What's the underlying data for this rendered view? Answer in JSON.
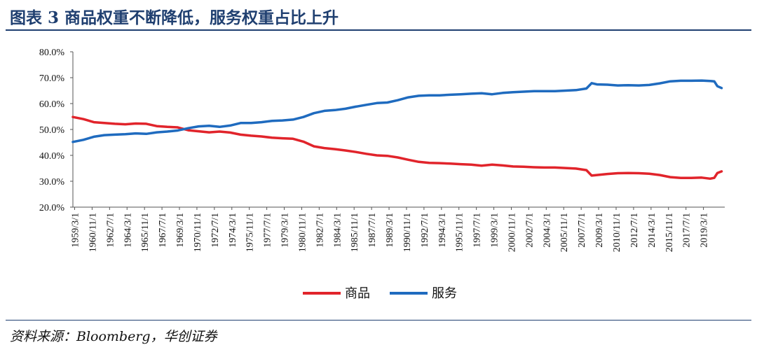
{
  "header": {
    "title": "图表 3    商品权重不断降低，服务权重占比上升"
  },
  "footer": {
    "source": "资料来源：Bloomberg，华创证券"
  },
  "colors": {
    "goods": "#e1242b",
    "services": "#1f6bbf",
    "accent": "#1f3f70"
  },
  "chart_data": {
    "type": "line",
    "title": "",
    "xlabel": "",
    "ylabel": "",
    "ylim": [
      20,
      80
    ],
    "y_ticks": [
      "20.0%",
      "30.0%",
      "40.0%",
      "50.0%",
      "60.0%",
      "70.0%",
      "80.0%"
    ],
    "x_tick_labels": [
      "1959/3/1",
      "1960/11/1",
      "1962/7/1",
      "1964/3/1",
      "1965/11/1",
      "1967/7/1",
      "1969/3/1",
      "1970/11/1",
      "1972/7/1",
      "1974/3/1",
      "1975/11/1",
      "1977/7/1",
      "1979/3/1",
      "1980/11/1",
      "1982/7/1",
      "1984/3/1",
      "1985/11/1",
      "1987/7/1",
      "1989/3/1",
      "1990/11/1",
      "1992/7/1",
      "1994/3/1",
      "1995/11/1",
      "1997/7/1",
      "1999/3/1",
      "2000/11/1",
      "2002/7/1",
      "2004/3/1",
      "2005/11/1",
      "2007/7/1",
      "2009/3/1",
      "2010/11/1",
      "2012/7/1",
      "2014/3/1",
      "2015/11/1",
      "2017/7/1",
      "2019/3/1"
    ],
    "grid": false,
    "legend_position": "bottom-center",
    "x": [
      1959.0,
      1960.0,
      1961.0,
      1962.0,
      1963.0,
      1964.0,
      1965.0,
      1966.0,
      1967.0,
      1968.0,
      1969.0,
      1970.0,
      1971.0,
      1972.0,
      1973.0,
      1974.0,
      1975.0,
      1976.0,
      1977.0,
      1978.0,
      1979.0,
      1980.0,
      1981.0,
      1982.0,
      1983.0,
      1984.0,
      1985.0,
      1986.0,
      1987.0,
      1988.0,
      1989.0,
      1990.0,
      1991.0,
      1992.0,
      1993.0,
      1994.0,
      1995.0,
      1996.0,
      1997.0,
      1998.0,
      1999.0,
      2000.0,
      2001.0,
      2002.0,
      2003.0,
      2004.0,
      2005.0,
      2006.0,
      2007.0,
      2008.0,
      2008.5,
      2009.0,
      2010.0,
      2011.0,
      2012.0,
      2013.0,
      2014.0,
      2015.0,
      2016.0,
      2017.0,
      2018.0,
      2019.0,
      2019.8,
      2020.2,
      2020.5,
      2020.9
    ],
    "series": [
      {
        "name": "商品",
        "color": "#e1242b",
        "values": [
          54.8,
          54.0,
          52.8,
          52.5,
          52.2,
          52.0,
          52.3,
          52.2,
          51.3,
          51.0,
          50.8,
          49.7,
          49.3,
          48.9,
          49.2,
          48.8,
          48.0,
          47.6,
          47.3,
          46.8,
          46.6,
          46.4,
          45.3,
          43.5,
          42.8,
          42.4,
          41.9,
          41.3,
          40.6,
          40.0,
          39.8,
          39.2,
          38.3,
          37.5,
          37.1,
          37.0,
          36.8,
          36.6,
          36.4,
          36.0,
          36.4,
          36.1,
          35.7,
          35.6,
          35.4,
          35.3,
          35.3,
          35.1,
          34.9,
          34.3,
          32.2,
          32.4,
          32.8,
          33.1,
          33.2,
          33.1,
          32.9,
          32.4,
          31.6,
          31.3,
          31.3,
          31.4,
          31.0,
          31.3,
          33.2,
          33.8
        ]
      },
      {
        "name": "服务",
        "color": "#1f6bbf",
        "values": [
          45.2,
          46.0,
          47.2,
          47.8,
          48.0,
          48.2,
          48.5,
          48.3,
          48.9,
          49.2,
          49.6,
          50.5,
          51.2,
          51.4,
          51.0,
          51.5,
          52.5,
          52.5,
          52.8,
          53.3,
          53.5,
          53.8,
          54.8,
          56.3,
          57.2,
          57.5,
          58.0,
          58.8,
          59.5,
          60.2,
          60.4,
          61.3,
          62.4,
          63.0,
          63.2,
          63.2,
          63.4,
          63.6,
          63.8,
          64.0,
          63.6,
          64.1,
          64.4,
          64.6,
          64.8,
          64.8,
          64.8,
          65.0,
          65.2,
          65.8,
          67.9,
          67.4,
          67.3,
          67.0,
          67.1,
          67.0,
          67.2,
          67.8,
          68.6,
          68.8,
          68.8,
          68.9,
          68.7,
          68.6,
          66.7,
          66.0
        ]
      }
    ]
  }
}
